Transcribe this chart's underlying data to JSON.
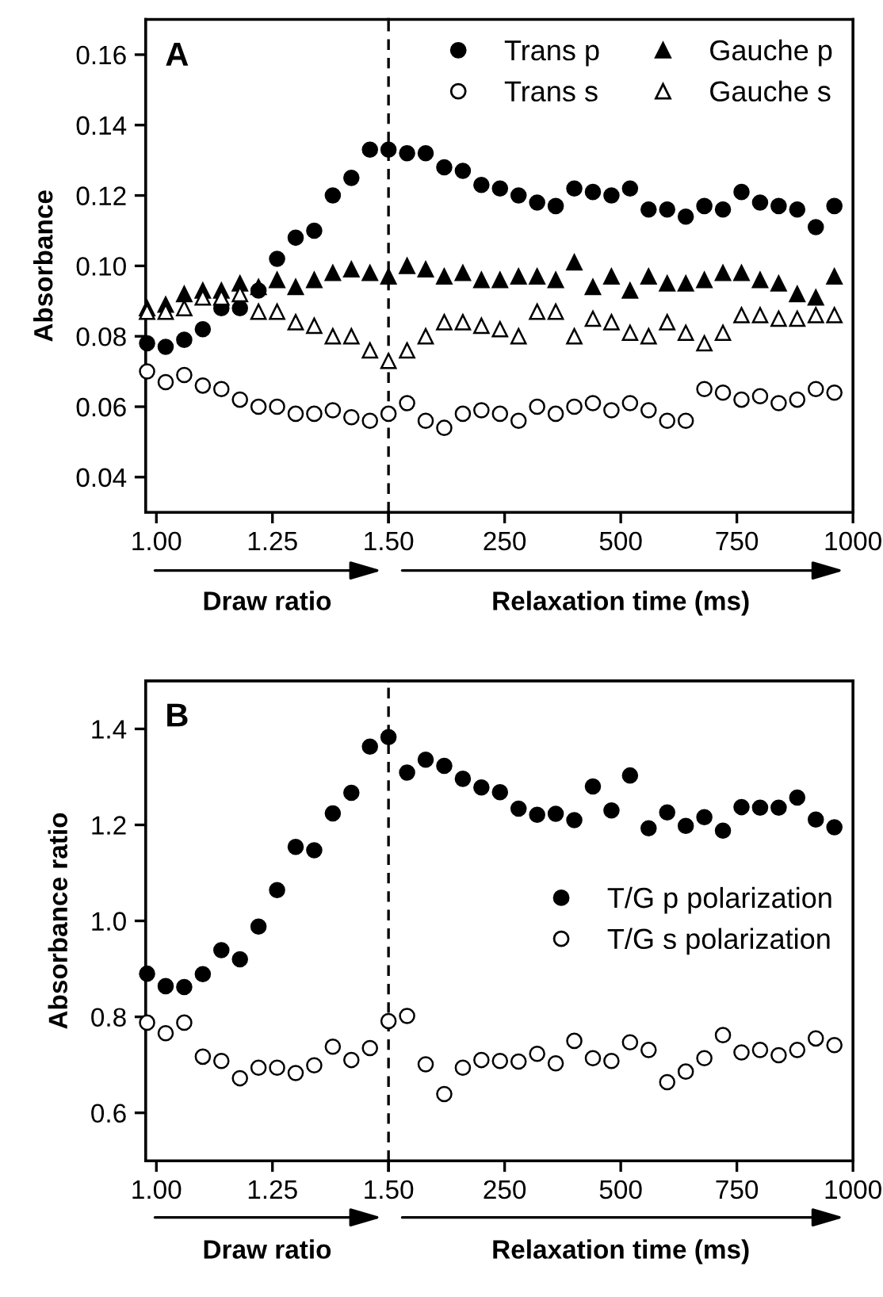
{
  "chart_data": [
    {
      "type": "scatter",
      "ylabel": "Absorbance",
      "xlabel": "Draw ratio",
      "annotations": [
        "A"
      ],
      "x": [
        0.98,
        1.02,
        1.06,
        1.1,
        1.14,
        1.18,
        1.22,
        1.26,
        1.3,
        1.34,
        1.38,
        1.42,
        1.46,
        1.5
      ],
      "xlim": [
        0.977,
        1.5
      ],
      "xticks": [
        {
          "value": 1.0,
          "label": "1.00"
        },
        1.25,
        {
          "value": 1.5,
          "label": "1.50"
        }
      ],
      "ylim": [
        0.03,
        0.17
      ],
      "yticks": [
        0.04,
        0.06,
        0.08,
        {
          "value": 0.1,
          "label": "0.10"
        },
        0.12,
        0.14,
        0.16
      ],
      "grid": false,
      "ref_lines": [
        {
          "axis": "x",
          "value": 1.5,
          "color": "#000000",
          "line_style": "dashed"
        }
      ],
      "series": [
        {
          "color": "#000000",
          "marker": "circle",
          "values": [
            0.078,
            0.077,
            0.079,
            0.082,
            0.088,
            0.088,
            0.093,
            0.102,
            0.108,
            0.11,
            0.12,
            0.125,
            0.133,
            0.133
          ]
        },
        {
          "color": "#ffffff",
          "marker": "circle",
          "values": [
            0.07,
            0.067,
            0.069,
            0.066,
            0.065,
            0.062,
            0.06,
            0.06,
            0.058,
            0.058,
            0.059,
            0.057,
            0.056,
            0.058
          ]
        },
        {
          "color": "#000000",
          "marker": "triangle",
          "values": [
            0.088,
            0.089,
            0.092,
            0.093,
            0.093,
            0.095,
            0.094,
            0.096,
            0.094,
            0.096,
            0.098,
            0.099,
            0.098,
            0.097
          ]
        },
        {
          "color": "#ffffff",
          "marker": "triangle",
          "values": [
            0.087,
            0.087,
            0.088,
            0.091,
            0.091,
            0.092,
            0.087,
            0.087,
            0.084,
            0.083,
            0.08,
            0.08,
            0.076,
            0.073
          ]
        }
      ]
    },
    {
      "type": "scatter",
      "xlabel": "Relaxation time (ms)",
      "tick_labels": "x",
      "legend": "top right",
      "x": [
        40,
        80,
        120,
        160,
        200,
        240,
        280,
        320,
        360,
        400,
        440,
        480,
        520,
        560,
        600,
        640,
        680,
        720,
        760,
        800,
        840,
        880,
        920,
        960
      ],
      "xlim": [
        0,
        1000
      ],
      "xticks": [
        {
          "value": 0,
          "label": null
        },
        250,
        500,
        750,
        1000
      ],
      "ylim": [
        0.03,
        0.17
      ],
      "grid": false,
      "series": [
        {
          "name": "Trans p",
          "color": "#000000",
          "marker": "circle",
          "values": [
            0.132,
            0.132,
            0.128,
            0.127,
            0.123,
            0.122,
            0.12,
            0.118,
            0.117,
            0.122,
            0.121,
            0.12,
            0.122,
            0.116,
            0.116,
            0.114,
            0.117,
            0.116,
            0.121,
            0.118,
            0.117,
            0.116,
            0.111,
            0.117
          ]
        },
        {
          "name": "Trans s",
          "color": "#ffffff",
          "marker": "circle",
          "values": [
            0.061,
            0.056,
            0.054,
            0.058,
            0.059,
            0.058,
            0.056,
            0.06,
            0.058,
            0.06,
            0.061,
            0.059,
            0.061,
            0.059,
            0.056,
            0.056,
            0.065,
            0.064,
            0.062,
            0.063,
            0.061,
            0.062,
            0.065,
            0.064
          ]
        },
        {
          "name": "Gauche p",
          "color": "#000000",
          "marker": "triangle",
          "values": [
            0.1,
            0.099,
            0.097,
            0.098,
            0.096,
            0.096,
            0.097,
            0.097,
            0.096,
            0.101,
            0.094,
            0.097,
            0.093,
            0.097,
            0.095,
            0.095,
            0.096,
            0.098,
            0.098,
            0.096,
            0.095,
            0.092,
            0.091,
            0.097
          ]
        },
        {
          "name": "Gauche s",
          "color": "#ffffff",
          "marker": "triangle",
          "values": [
            0.076,
            0.08,
            0.084,
            0.084,
            0.083,
            0.082,
            0.08,
            0.087,
            0.087,
            0.08,
            0.085,
            0.084,
            0.081,
            0.08,
            0.084,
            0.081,
            0.078,
            0.081,
            0.086,
            0.086,
            0.085,
            0.085,
            0.086,
            0.086
          ]
        }
      ]
    },
    {
      "type": "scatter",
      "ylabel": "Absorbance ratio",
      "xlabel": "Draw ratio",
      "annotations": [
        "B"
      ],
      "x": [
        0.98,
        1.02,
        1.06,
        1.1,
        1.14,
        1.18,
        1.22,
        1.26,
        1.3,
        1.34,
        1.38,
        1.42,
        1.46,
        1.5
      ],
      "xlim": [
        0.977,
        1.5
      ],
      "xticks": [
        {
          "value": 1.0,
          "label": "1.00"
        },
        1.25,
        {
          "value": 1.5,
          "label": "1.50"
        }
      ],
      "ylim": [
        0.5,
        1.5
      ],
      "yticks": [
        0.6,
        0.8,
        {
          "value": 1.0,
          "label": "1.0"
        },
        1.2,
        1.4
      ],
      "grid": false,
      "ref_lines": [
        {
          "axis": "x",
          "value": 1.5,
          "color": "#000000",
          "line_style": "dashed"
        }
      ],
      "series": [
        {
          "color": "#000000",
          "marker": "circle",
          "values": [
            0.89,
            0.864,
            0.862,
            0.889,
            0.939,
            0.92,
            0.988,
            1.064,
            1.154,
            1.147,
            1.224,
            1.267,
            1.363,
            1.383
          ]
        },
        {
          "color": "#ffffff",
          "marker": "circle",
          "values": [
            0.788,
            0.766,
            0.788,
            0.717,
            0.708,
            0.672,
            0.694,
            0.694,
            0.683,
            0.699,
            0.738,
            0.71,
            0.735,
            0.791
          ]
        }
      ]
    },
    {
      "type": "scatter",
      "xlabel": "Relaxation time (ms)",
      "tick_labels": "x",
      "legend": "right",
      "x": [
        40,
        80,
        120,
        160,
        200,
        240,
        280,
        320,
        360,
        400,
        440,
        480,
        520,
        560,
        600,
        640,
        680,
        720,
        760,
        800,
        840,
        880,
        920,
        960
      ],
      "xlim": [
        0,
        1000
      ],
      "xticks": [
        {
          "value": 0,
          "label": null
        },
        250,
        500,
        750,
        1000
      ],
      "ylim": [
        0.5,
        1.5
      ],
      "grid": false,
      "series": [
        {
          "name": "T/G p polarization",
          "color": "#000000",
          "marker": "circle",
          "values": [
            1.309,
            1.336,
            1.323,
            1.296,
            1.278,
            1.268,
            1.234,
            1.221,
            1.223,
            1.21,
            1.28,
            1.23,
            1.303,
            1.193,
            1.226,
            1.198,
            1.216,
            1.188,
            1.237,
            1.236,
            1.236,
            1.257,
            1.211,
            1.195
          ]
        },
        {
          "name": "T/G s polarization",
          "color": "#ffffff",
          "marker": "circle",
          "values": [
            0.802,
            0.701,
            0.639,
            0.694,
            0.71,
            0.708,
            0.707,
            0.723,
            0.703,
            0.75,
            0.714,
            0.708,
            0.747,
            0.731,
            0.664,
            0.686,
            0.714,
            0.762,
            0.726,
            0.731,
            0.72,
            0.731,
            0.755,
            0.741
          ]
        }
      ]
    }
  ]
}
